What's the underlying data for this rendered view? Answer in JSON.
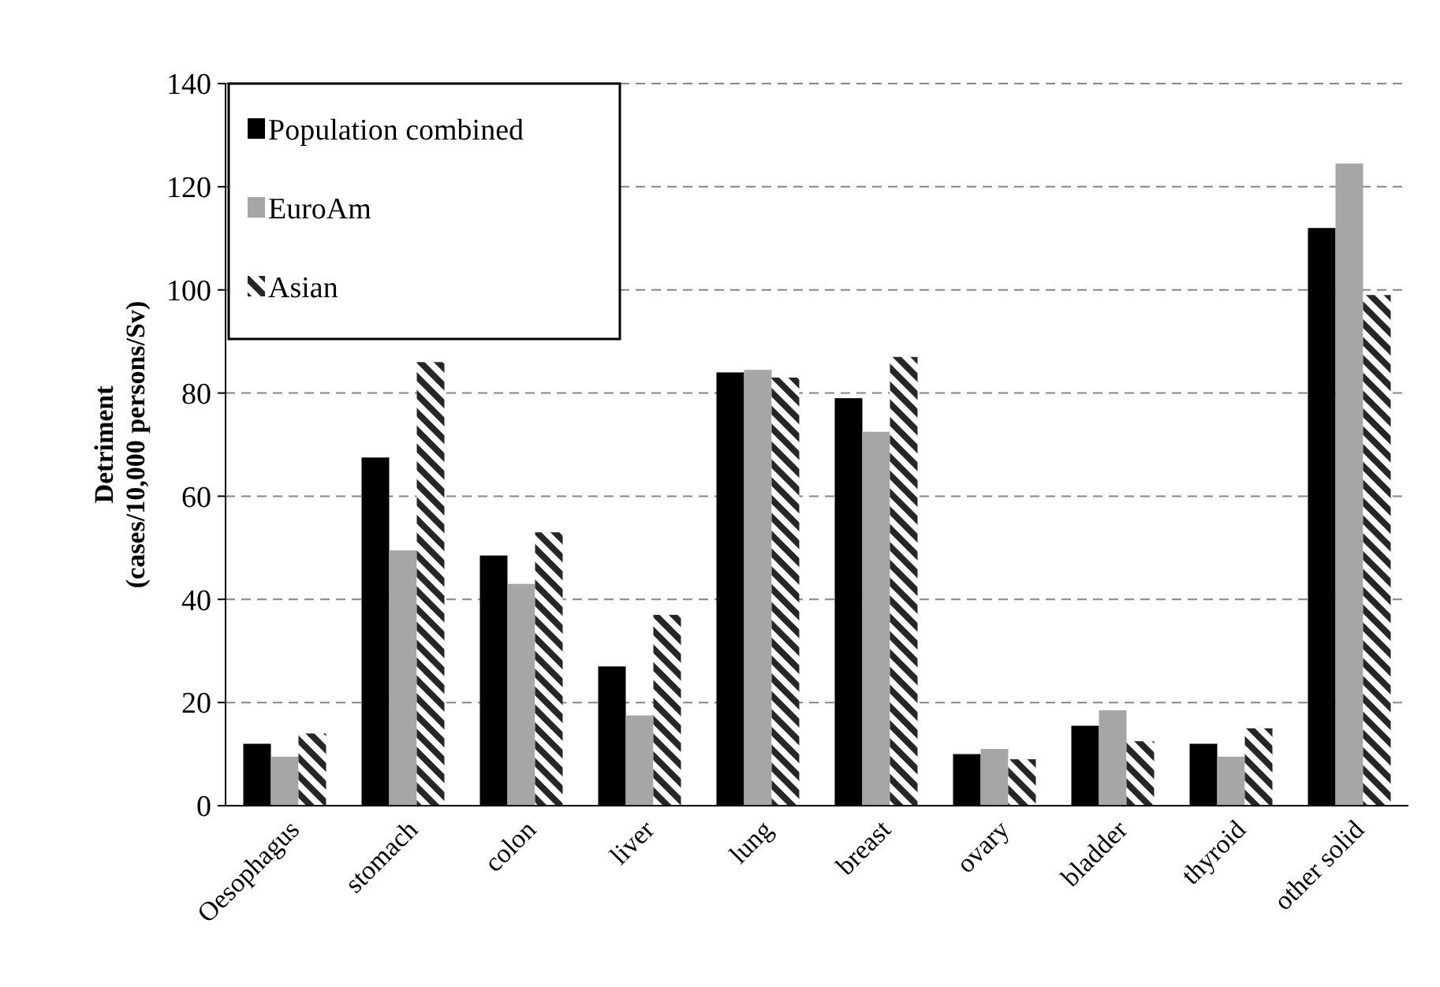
{
  "chart_data": {
    "type": "bar",
    "ylabel": "Detriment\n(cases/10,000 persons/Sv)",
    "categories": [
      "Oesophagus",
      "stomach",
      "colon",
      "liver",
      "lung",
      "breast",
      "ovary",
      "bladder",
      "thyroid",
      "other solid"
    ],
    "series": [
      {
        "name": "Population combined",
        "color": "#000000",
        "values": [
          12,
          67.5,
          48.5,
          27,
          84,
          79,
          10,
          15.5,
          12,
          112
        ]
      },
      {
        "name": "EuroAm",
        "color": "#a6a6a6",
        "values": [
          9.5,
          49.5,
          43,
          17.5,
          84.5,
          72.5,
          11,
          18.5,
          9.5,
          124.5
        ]
      },
      {
        "name": "Asian",
        "color": "#262626",
        "values": [
          14,
          86,
          53,
          37,
          83,
          87,
          9,
          12.5,
          15,
          99
        ]
      }
    ],
    "ylim": [
      0,
      140
    ],
    "yticks": [
      0,
      20,
      40,
      60,
      80,
      100,
      120,
      140
    ],
    "grid": "y",
    "legend": "top left"
  }
}
